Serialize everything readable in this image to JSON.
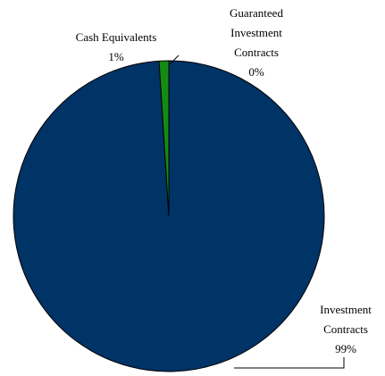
{
  "chart_data": {
    "type": "pie",
    "categories": [
      "Investment Contracts",
      "Cash Equivalents",
      "Guaranteed Investment Contracts"
    ],
    "values": [
      99,
      1,
      0
    ],
    "value_labels": [
      "99%",
      "1%",
      "0%"
    ],
    "colors": [
      "#003366",
      "#148c14",
      "#7f7f7f"
    ]
  }
}
